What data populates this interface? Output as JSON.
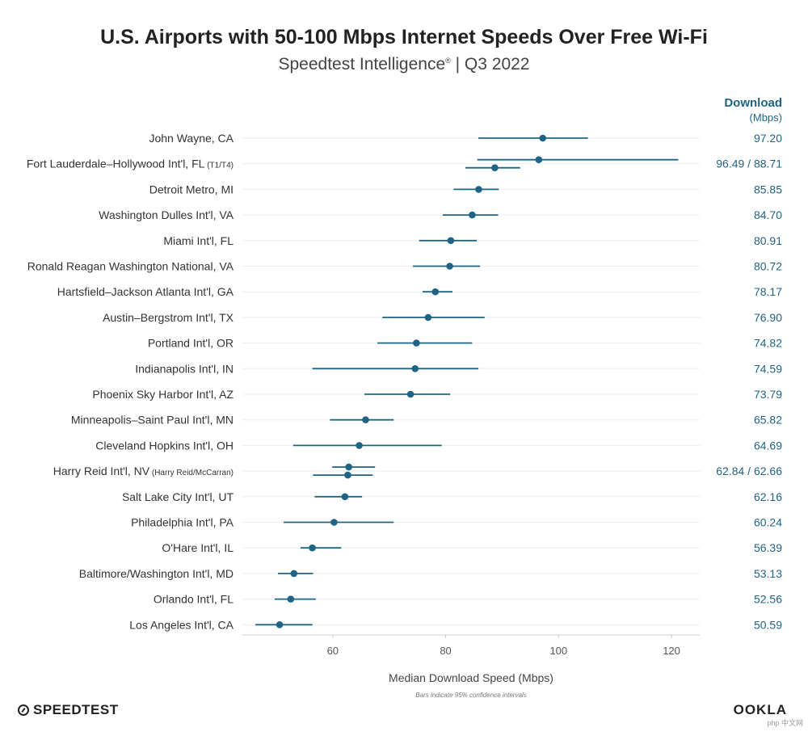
{
  "header": {
    "title": "U.S. Airports with 50-100 Mbps Internet Speeds Over Free Wi-Fi",
    "subtitle_main": "Speedtest Intelligence",
    "subtitle_mark": "®",
    "subtitle_tail": " | Q3 2022",
    "column_head_1": "Download",
    "column_head_2": "(Mbps)"
  },
  "footer": {
    "xlabel": "Median Download Speed (Mbps)",
    "note": "Bars indicate 95% confidence intervals",
    "brand_left": "SPEEDTEST",
    "brand_right": "OOKLA",
    "watermark": "php 中文网"
  },
  "colors": {
    "accent": "#1f6485",
    "grid": "#eeeeee",
    "label": "#333333"
  },
  "chart_data": {
    "type": "scatter",
    "title": "U.S. Airports with 50-100 Mbps Internet Speeds Over Free Wi-Fi",
    "xlabel": "Median Download Speed (Mbps)",
    "xlim": [
      44,
      125
    ],
    "xticks": [
      60,
      80,
      100,
      120
    ],
    "grid": true,
    "rows": [
      {
        "label": "John Wayne, CA",
        "sublabel": "",
        "display": "97.20",
        "points": [
          {
            "median": 97.2,
            "lo": 85.8,
            "hi": 105.2
          }
        ]
      },
      {
        "label": "Fort Lauderdale–Hollywood Int'l, FL",
        "sublabel": "(T1/T4)",
        "display": "96.49 / 88.71",
        "points": [
          {
            "median": 96.49,
            "lo": 85.6,
            "hi": 121.2
          },
          {
            "median": 88.71,
            "lo": 83.5,
            "hi": 93.2
          }
        ]
      },
      {
        "label": "Detroit Metro, MI",
        "sublabel": "",
        "display": "85.85",
        "points": [
          {
            "median": 85.85,
            "lo": 81.4,
            "hi": 89.4
          }
        ]
      },
      {
        "label": "Washington Dulles Int'l, VA",
        "sublabel": "",
        "display": "84.70",
        "points": [
          {
            "median": 84.7,
            "lo": 79.5,
            "hi": 89.3
          }
        ]
      },
      {
        "label": "Miami Int'l, FL",
        "sublabel": "",
        "display": "80.91",
        "points": [
          {
            "median": 80.91,
            "lo": 75.3,
            "hi": 85.5
          }
        ]
      },
      {
        "label": "Ronald Reagan Washington National, VA",
        "sublabel": "",
        "display": "80.72",
        "points": [
          {
            "median": 80.72,
            "lo": 74.2,
            "hi": 86.1
          }
        ]
      },
      {
        "label": "Hartsfield–Jackson Atlanta Int'l, GA",
        "sublabel": "",
        "display": "78.17",
        "points": [
          {
            "median": 78.17,
            "lo": 75.9,
            "hi": 81.2
          }
        ]
      },
      {
        "label": "Austin–Bergstrom Int'l, TX",
        "sublabel": "",
        "display": "76.90",
        "points": [
          {
            "median": 76.9,
            "lo": 68.8,
            "hi": 86.9
          }
        ]
      },
      {
        "label": "Portland Int'l, OR",
        "sublabel": "",
        "display": "74.82",
        "points": [
          {
            "median": 74.82,
            "lo": 67.9,
            "hi": 84.7
          }
        ]
      },
      {
        "label": "Indianapolis Int'l, IN",
        "sublabel": "",
        "display": "74.59",
        "points": [
          {
            "median": 74.59,
            "lo": 56.4,
            "hi": 85.8
          }
        ]
      },
      {
        "label": "Phoenix Sky Harbor Int'l, AZ",
        "sublabel": "",
        "display": "73.79",
        "points": [
          {
            "median": 73.79,
            "lo": 65.6,
            "hi": 80.8
          }
        ]
      },
      {
        "label": "Minneapolis–Saint Paul Int'l, MN",
        "sublabel": "",
        "display": "65.82",
        "points": [
          {
            "median": 65.82,
            "lo": 59.5,
            "hi": 70.8
          }
        ]
      },
      {
        "label": "Cleveland Hopkins Int'l, OH",
        "sublabel": "",
        "display": "64.69",
        "points": [
          {
            "median": 64.69,
            "lo": 53.0,
            "hi": 79.3
          }
        ]
      },
      {
        "label": "Harry Reid Int'l, NV",
        "sublabel": "(Harry Reid/McCarran)",
        "display": "62.84 / 62.66",
        "points": [
          {
            "median": 62.84,
            "lo": 59.9,
            "hi": 67.5
          },
          {
            "median": 62.66,
            "lo": 56.5,
            "hi": 67.1
          }
        ]
      },
      {
        "label": "Salt Lake City Int'l, UT",
        "sublabel": "",
        "display": "62.16",
        "points": [
          {
            "median": 62.16,
            "lo": 56.8,
            "hi": 65.2
          }
        ]
      },
      {
        "label": "Philadelphia Int'l, PA",
        "sublabel": "",
        "display": "60.24",
        "points": [
          {
            "median": 60.24,
            "lo": 51.3,
            "hi": 70.8
          }
        ]
      },
      {
        "label": "O'Hare Int'l, IL",
        "sublabel": "",
        "display": "56.39",
        "points": [
          {
            "median": 56.39,
            "lo": 54.3,
            "hi": 61.5
          }
        ]
      },
      {
        "label": "Baltimore/Washington Int'l, MD",
        "sublabel": "",
        "display": "53.13",
        "points": [
          {
            "median": 53.13,
            "lo": 50.3,
            "hi": 56.5
          }
        ]
      },
      {
        "label": "Orlando Int'l, FL",
        "sublabel": "",
        "display": "52.56",
        "points": [
          {
            "median": 52.56,
            "lo": 49.7,
            "hi": 57.0
          }
        ]
      },
      {
        "label": "Los Angeles Int'l, CA",
        "sublabel": "",
        "display": "50.59",
        "points": [
          {
            "median": 50.59,
            "lo": 46.3,
            "hi": 56.4
          }
        ]
      }
    ]
  }
}
